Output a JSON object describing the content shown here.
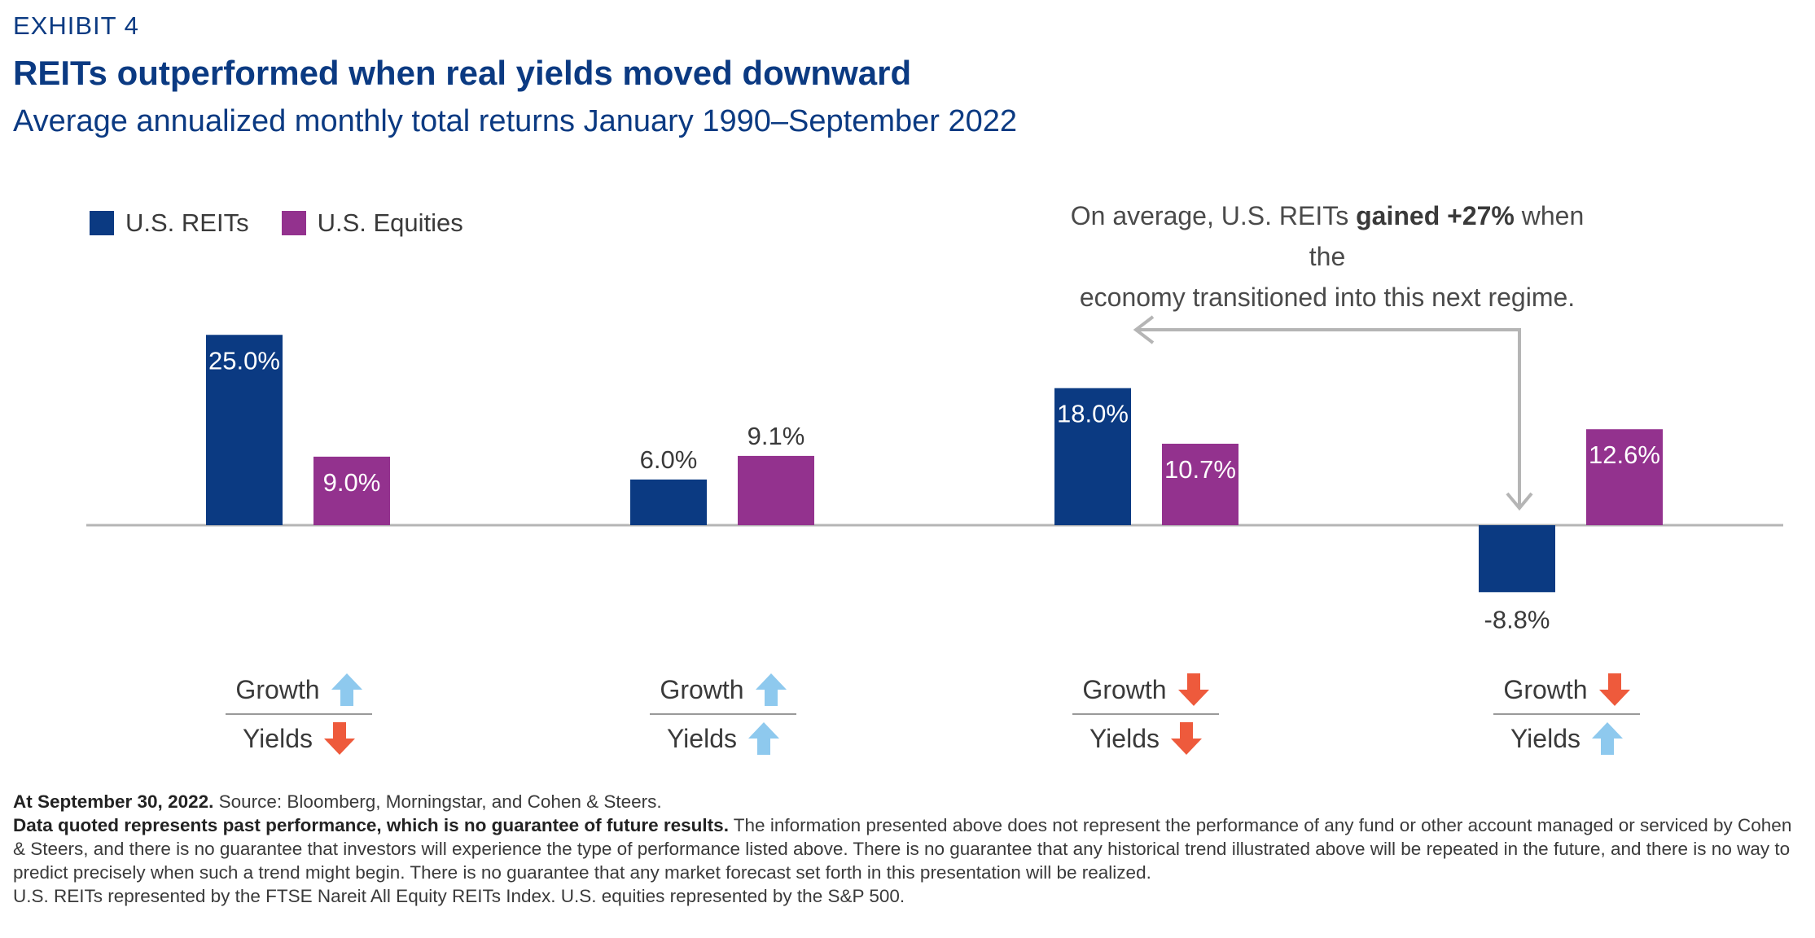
{
  "exhibit_label": "EXHIBIT 4",
  "title": "REITs outperformed when real yields moved downward",
  "subtitle": "Average annualized monthly total returns January 1990–September 2022",
  "colors": {
    "reits": "#0b3a82",
    "equities": "#93328e",
    "up_arrow": "#8ec9ee",
    "down_arrow": "#ee5a3c",
    "baseline": "#b5b5b5",
    "callout_arrow": "#b5b5b5"
  },
  "legend": [
    {
      "label": "U.S. REITs",
      "color": "#0b3a82"
    },
    {
      "label": "U.S. Equities",
      "color": "#93328e"
    }
  ],
  "callout": {
    "line1_pre": "On average, U.S. REITs ",
    "line1_bold": "gained +27%",
    "line1_post": " when the",
    "line2": "economy transitioned into this next regime."
  },
  "chart_data": {
    "type": "bar",
    "categories": [
      "Growth up, Yields down",
      "Growth up, Yields up",
      "Growth down, Yields down",
      "Growth down, Yields up"
    ],
    "series": [
      {
        "name": "U.S. REITs",
        "values": [
          25.0,
          6.0,
          18.0,
          -8.8
        ],
        "labels": [
          "25.0%",
          "6.0%",
          "18.0%",
          "-8.8%"
        ]
      },
      {
        "name": "U.S. Equities",
        "values": [
          9.0,
          9.1,
          10.7,
          12.6
        ],
        "labels": [
          "9.0%",
          "9.1%",
          "10.7%",
          "12.6%"
        ]
      }
    ],
    "label_inside": [
      [
        true,
        false,
        true,
        false
      ],
      [
        true,
        false,
        true,
        true
      ]
    ],
    "ylim": [
      -15,
      30
    ]
  },
  "regimes": [
    {
      "growth_label": "Growth",
      "growth_dir": "up",
      "yields_label": "Yields",
      "yields_dir": "down"
    },
    {
      "growth_label": "Growth",
      "growth_dir": "up",
      "yields_label": "Yields",
      "yields_dir": "up"
    },
    {
      "growth_label": "Growth",
      "growth_dir": "down",
      "yields_label": "Yields",
      "yields_dir": "down"
    },
    {
      "growth_label": "Growth",
      "growth_dir": "down",
      "yields_label": "Yields",
      "yields_dir": "up"
    }
  ],
  "notes": {
    "line1_bold": "At September 30, 2022.",
    "line1_rest": " Source: Bloomberg, Morningstar, and Cohen & Steers.",
    "line2_bold": "Data quoted represents past performance, which is no guarantee of future results.",
    "line2_rest": " The information presented above does not represent the performance of any fund or other account managed or serviced by Cohen & Steers, and there is no guarantee that investors will experience the type of performance listed above. There is no guarantee that any historical trend illustrated above will be repeated in the future, and there is no way to predict precisely when such a trend might begin. There is no guarantee that any market forecast set forth in this presentation will be realized.",
    "line3": "U.S. REITs represented by the FTSE Nareit All Equity REITs Index. U.S. equities represented by the S&P 500."
  }
}
